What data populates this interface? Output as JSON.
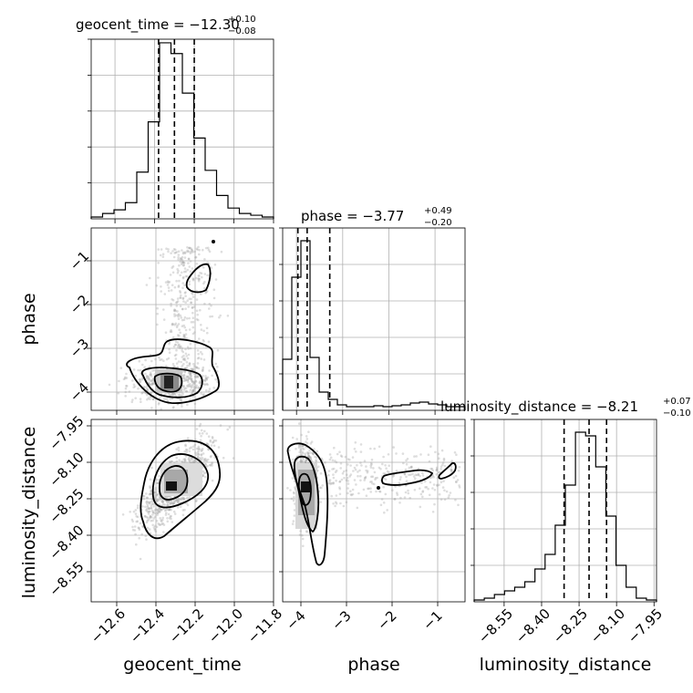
{
  "chart_data": {
    "type": "corner",
    "parameters": [
      {
        "name": "geocent_time",
        "range": [
          -12.72,
          -11.8
        ],
        "ticks": [
          -12.6,
          -12.4,
          -12.2,
          -12.0,
          -11.8
        ],
        "tick_labels": [
          "−12.6",
          "−12.4",
          "−12.2",
          "−12.0",
          "−11.8"
        ],
        "median": -12.3,
        "err_plus": 0.1,
        "err_minus": 0.08,
        "title_main": "geocent_time = −12.30",
        "title_sup": "+0.10",
        "title_sub": "−0.08",
        "hist": [
          0.01,
          0.03,
          0.05,
          0.09,
          0.26,
          0.54,
          0.98,
          0.92,
          0.7,
          0.45,
          0.27,
          0.13,
          0.06,
          0.03,
          0.02,
          0.01
        ]
      },
      {
        "name": "phase",
        "range": [
          -4.3,
          -0.35
        ],
        "ticks": [
          -4,
          -3,
          -2,
          -1
        ],
        "tick_labels": [
          "−4",
          "−3",
          "−2",
          "−1"
        ],
        "median": -3.77,
        "err_plus": 0.49,
        "err_minus": 0.2,
        "title_main": "phase = −3.77",
        "title_sup": "+0.49",
        "title_sub": "−0.20",
        "hist": [
          0.28,
          0.73,
          0.93,
          0.29,
          0.1,
          0.06,
          0.03,
          0.02,
          0.02,
          0.02,
          0.025,
          0.02,
          0.025,
          0.03,
          0.04,
          0.045,
          0.035,
          0.03,
          0.02,
          0.02
        ]
      },
      {
        "name": "luminosity_distance",
        "range": [
          -8.67,
          -7.94
        ],
        "ticks": [
          -8.55,
          -8.4,
          -8.25,
          -8.1,
          -7.95
        ],
        "tick_labels": [
          "−8.55",
          "−8.40",
          "−8.25",
          "−8.10",
          "−7.95"
        ],
        "median": -8.21,
        "err_plus": 0.07,
        "err_minus": 0.1,
        "title_main": "luminosity_distance = −8.21",
        "title_sup": "+0.07",
        "title_sub": "−0.10",
        "hist": [
          0.01,
          0.02,
          0.04,
          0.06,
          0.08,
          0.11,
          0.18,
          0.26,
          0.42,
          0.64,
          0.93,
          0.91,
          0.74,
          0.47,
          0.2,
          0.08,
          0.02,
          0.01
        ]
      }
    ],
    "contour_levels": [
      "39%",
      "86%",
      "99%"
    ],
    "grid": true,
    "legend": "none"
  }
}
